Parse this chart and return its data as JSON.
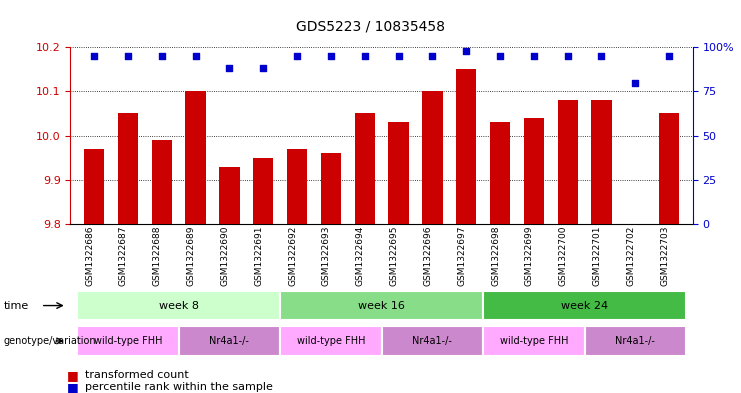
{
  "title": "GDS5223 / 10835458",
  "samples": [
    "GSM1322686",
    "GSM1322687",
    "GSM1322688",
    "GSM1322689",
    "GSM1322690",
    "GSM1322691",
    "GSM1322692",
    "GSM1322693",
    "GSM1322694",
    "GSM1322695",
    "GSM1322696",
    "GSM1322697",
    "GSM1322698",
    "GSM1322699",
    "GSM1322700",
    "GSM1322701",
    "GSM1322702",
    "GSM1322703"
  ],
  "bar_values": [
    9.97,
    10.05,
    9.99,
    10.1,
    9.93,
    9.95,
    9.97,
    9.96,
    10.05,
    10.03,
    10.1,
    10.15,
    10.03,
    10.04,
    10.08,
    10.08,
    9.8,
    10.05
  ],
  "blue_dot_values": [
    95,
    95,
    95,
    95,
    88,
    88,
    95,
    95,
    95,
    95,
    95,
    98,
    95,
    95,
    95,
    95,
    80,
    95
  ],
  "ylim_left": [
    9.8,
    10.2
  ],
  "ylim_right": [
    0,
    100
  ],
  "yticks_left": [
    9.8,
    9.9,
    10.0,
    10.1,
    10.2
  ],
  "yticks_right": [
    0,
    25,
    50,
    75,
    100
  ],
  "ytick_labels_right": [
    "0",
    "25",
    "50",
    "75",
    "100%"
  ],
  "bar_color": "#cc0000",
  "dot_color": "#0000cc",
  "bar_bottom": 9.8,
  "time_groups": [
    {
      "label": "week 8",
      "start": 0,
      "end": 6,
      "color": "#ccffcc"
    },
    {
      "label": "week 16",
      "start": 6,
      "end": 12,
      "color": "#88dd88"
    },
    {
      "label": "week 24",
      "start": 12,
      "end": 18,
      "color": "#44bb44"
    }
  ],
  "genotype_groups": [
    {
      "label": "wild-type FHH",
      "start": 0,
      "end": 3,
      "color": "#ffaaff"
    },
    {
      "label": "Nr4a1-/-",
      "start": 3,
      "end": 6,
      "color": "#cc88cc"
    },
    {
      "label": "wild-type FHH",
      "start": 6,
      "end": 9,
      "color": "#ffaaff"
    },
    {
      "label": "Nr4a1-/-",
      "start": 9,
      "end": 12,
      "color": "#cc88cc"
    },
    {
      "label": "wild-type FHH",
      "start": 12,
      "end": 15,
      "color": "#ffaaff"
    },
    {
      "label": "Nr4a1-/-",
      "start": 15,
      "end": 18,
      "color": "#cc88cc"
    }
  ],
  "legend_red_label": "transformed count",
  "legend_blue_label": "percentile rank within the sample",
  "axis_left_color": "#cc0000",
  "axis_right_color": "#0000cc",
  "grid_style": "dotted",
  "bg_color": "white"
}
